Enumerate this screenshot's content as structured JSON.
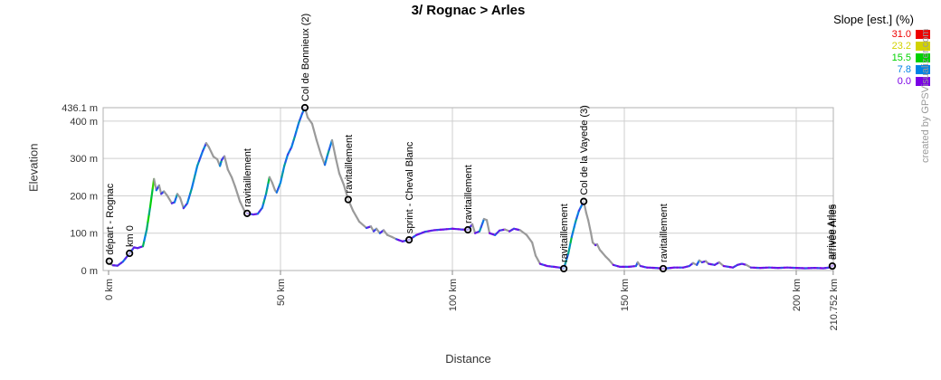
{
  "title": "3/ Rognac > Arles",
  "watermark": "created by GPSVisualizer.com",
  "axes": {
    "x_label": "Distance",
    "y_label": "Elevation",
    "x_ticks": [
      {
        "label": "0 km",
        "km": 0,
        "grid": false
      },
      {
        "label": "50 km",
        "km": 50,
        "grid": true
      },
      {
        "label": "100 km",
        "km": 100,
        "grid": true
      },
      {
        "label": "150 km",
        "km": 150,
        "grid": true
      },
      {
        "label": "200 km",
        "km": 200,
        "grid": true
      },
      {
        "label": "210.752 km",
        "km": 210.752,
        "grid": false
      }
    ],
    "y_ticks": [
      {
        "label": "0 m",
        "m": 0,
        "grid": false
      },
      {
        "label": "100 m",
        "m": 100,
        "grid": true
      },
      {
        "label": "200 m",
        "m": 200,
        "grid": true
      },
      {
        "label": "300 m",
        "m": 300,
        "grid": true
      },
      {
        "label": "400 m",
        "m": 400,
        "grid": true
      },
      {
        "label": "436.1 m",
        "m": 436.1,
        "grid": false
      }
    ]
  },
  "legend": {
    "title": "Slope [est.] (%)",
    "entries": [
      {
        "value": "31.0",
        "color": "#ee0000"
      },
      {
        "value": "23.2",
        "color": "#d2d200"
      },
      {
        "value": "15.5",
        "color": "#00d200"
      },
      {
        "value": "7.8",
        "color": "#0082e6"
      },
      {
        "value": "0.0",
        "color": "#7a00e6"
      }
    ]
  },
  "chart_data": {
    "type": "line",
    "x_unit": "km",
    "y_unit": "m",
    "x_max": 210.752,
    "y_max": 436.1,
    "descent_color": "#9a9a9a",
    "grid_color": "#cfcfcf",
    "frame_color": "#b0b0b0",
    "profile": [
      [
        0,
        27
      ],
      [
        0.2,
        25
      ],
      [
        0.5,
        18
      ],
      [
        1.3,
        14
      ],
      [
        2.6,
        13
      ],
      [
        4.2,
        24
      ],
      [
        6.1,
        46
      ],
      [
        7.4,
        62
      ],
      [
        8.4,
        60
      ],
      [
        10,
        65
      ],
      [
        11.1,
        110
      ],
      [
        12.1,
        170
      ],
      [
        13.2,
        245
      ],
      [
        13.9,
        215
      ],
      [
        14.7,
        228
      ],
      [
        15.3,
        205
      ],
      [
        16.1,
        212
      ],
      [
        17.1,
        200
      ],
      [
        18.4,
        180
      ],
      [
        19.2,
        183
      ],
      [
        20,
        205
      ],
      [
        20.8,
        195
      ],
      [
        21.8,
        167
      ],
      [
        22.9,
        180
      ],
      [
        24.2,
        220
      ],
      [
        25.8,
        280
      ],
      [
        27.4,
        320
      ],
      [
        28.4,
        341
      ],
      [
        29.2,
        330
      ],
      [
        30.5,
        305
      ],
      [
        31.6,
        298
      ],
      [
        32.4,
        280
      ],
      [
        32.9,
        296
      ],
      [
        33.7,
        306
      ],
      [
        34.7,
        270
      ],
      [
        35.8,
        250
      ],
      [
        36.8,
        225
      ],
      [
        38.2,
        185
      ],
      [
        39.5,
        160
      ],
      [
        40.3,
        153
      ],
      [
        42.1,
        150
      ],
      [
        43.4,
        152
      ],
      [
        44.7,
        168
      ],
      [
        45.8,
        205
      ],
      [
        46.8,
        250
      ],
      [
        47.6,
        235
      ],
      [
        48.4,
        215
      ],
      [
        48.9,
        209
      ],
      [
        50,
        235
      ],
      [
        51.1,
        280
      ],
      [
        52.1,
        310
      ],
      [
        53.2,
        330
      ],
      [
        54.2,
        360
      ],
      [
        55.3,
        395
      ],
      [
        56.3,
        420
      ],
      [
        57.1,
        436.1
      ],
      [
        57.9,
        410
      ],
      [
        59.2,
        393
      ],
      [
        60.5,
        349
      ],
      [
        61.8,
        310
      ],
      [
        62.9,
        283
      ],
      [
        63.7,
        310
      ],
      [
        65,
        349
      ],
      [
        66.1,
        300
      ],
      [
        67.1,
        260
      ],
      [
        68.4,
        230
      ],
      [
        69.7,
        190
      ],
      [
        71.1,
        160
      ],
      [
        72.9,
        131
      ],
      [
        75,
        114
      ],
      [
        76.3,
        118
      ],
      [
        77.1,
        105
      ],
      [
        77.9,
        112
      ],
      [
        78.9,
        100
      ],
      [
        80,
        108
      ],
      [
        81.1,
        95
      ],
      [
        82.4,
        90
      ],
      [
        83.7,
        84
      ],
      [
        85.5,
        78
      ],
      [
        87.4,
        82
      ],
      [
        89.5,
        95
      ],
      [
        92.1,
        104
      ],
      [
        94.7,
        108
      ],
      [
        97.4,
        110
      ],
      [
        100,
        112
      ],
      [
        102.6,
        110
      ],
      [
        104.5,
        109
      ],
      [
        105.8,
        124
      ],
      [
        106.6,
        100
      ],
      [
        107.9,
        105
      ],
      [
        109.2,
        138
      ],
      [
        110,
        135
      ],
      [
        110.8,
        100
      ],
      [
        112.4,
        95
      ],
      [
        113.7,
        107
      ],
      [
        115.3,
        110
      ],
      [
        116.6,
        105
      ],
      [
        117.9,
        112
      ],
      [
        119.7,
        108
      ],
      [
        121.6,
        95
      ],
      [
        123.2,
        75
      ],
      [
        124.2,
        40
      ],
      [
        125.5,
        18
      ],
      [
        127.6,
        12
      ],
      [
        129.5,
        10
      ],
      [
        131.1,
        8
      ],
      [
        132.4,
        5
      ],
      [
        133.7,
        45
      ],
      [
        134.7,
        90
      ],
      [
        135.8,
        130
      ],
      [
        136.8,
        160
      ],
      [
        138.2,
        185
      ],
      [
        138.9,
        155
      ],
      [
        139.5,
        135
      ],
      [
        140.3,
        100
      ],
      [
        140.8,
        75
      ],
      [
        141.6,
        68
      ],
      [
        142.1,
        70
      ],
      [
        142.9,
        55
      ],
      [
        143.4,
        50
      ],
      [
        144.5,
        38
      ],
      [
        145.5,
        29
      ],
      [
        146.8,
        15
      ],
      [
        148.7,
        10
      ],
      [
        151.3,
        10
      ],
      [
        153.4,
        12
      ],
      [
        153.9,
        22
      ],
      [
        154.7,
        12
      ],
      [
        156.6,
        8
      ],
      [
        159.2,
        7
      ],
      [
        161.3,
        5
      ],
      [
        164.5,
        8
      ],
      [
        167.1,
        8
      ],
      [
        168.9,
        12
      ],
      [
        170,
        20
      ],
      [
        171.1,
        15
      ],
      [
        171.8,
        27
      ],
      [
        172.6,
        22
      ],
      [
        173.7,
        25
      ],
      [
        174.5,
        18
      ],
      [
        176.3,
        15
      ],
      [
        177.6,
        22
      ],
      [
        178.9,
        12
      ],
      [
        181.6,
        8
      ],
      [
        182.9,
        15
      ],
      [
        184.2,
        18
      ],
      [
        185.5,
        15
      ],
      [
        186.8,
        8
      ],
      [
        189.5,
        7
      ],
      [
        192.1,
        8
      ],
      [
        194.7,
        7
      ],
      [
        197.4,
        8
      ],
      [
        200,
        7
      ],
      [
        202.6,
        6
      ],
      [
        205.3,
        7
      ],
      [
        207.9,
        6
      ],
      [
        209.5,
        8
      ],
      [
        210.752,
        14
      ]
    ],
    "waypoints": [
      {
        "km": 0.2,
        "m": 25,
        "label": "départ - Rognac"
      },
      {
        "km": 6.1,
        "m": 46,
        "label": "km 0"
      },
      {
        "km": 40.3,
        "m": 153,
        "label": "ravitaillement"
      },
      {
        "km": 57.1,
        "m": 436.1,
        "label": "Col de Bonnieux (2)"
      },
      {
        "km": 69.7,
        "m": 190,
        "label": "ravitaillement"
      },
      {
        "km": 87.4,
        "m": 82,
        "label": "sprint - Cheval Blanc"
      },
      {
        "km": 104.5,
        "m": 109,
        "label": "ravitaillement"
      },
      {
        "km": 132.4,
        "m": 5,
        "label": "ravitaillement"
      },
      {
        "km": 138.2,
        "m": 185,
        "label": "Col de la Vayede (3)"
      },
      {
        "km": 161.3,
        "m": 5,
        "label": "ravitaillement"
      },
      {
        "km": 210.5,
        "m": 12,
        "label": "arrivée Arles",
        "overlapped": true
      }
    ]
  }
}
